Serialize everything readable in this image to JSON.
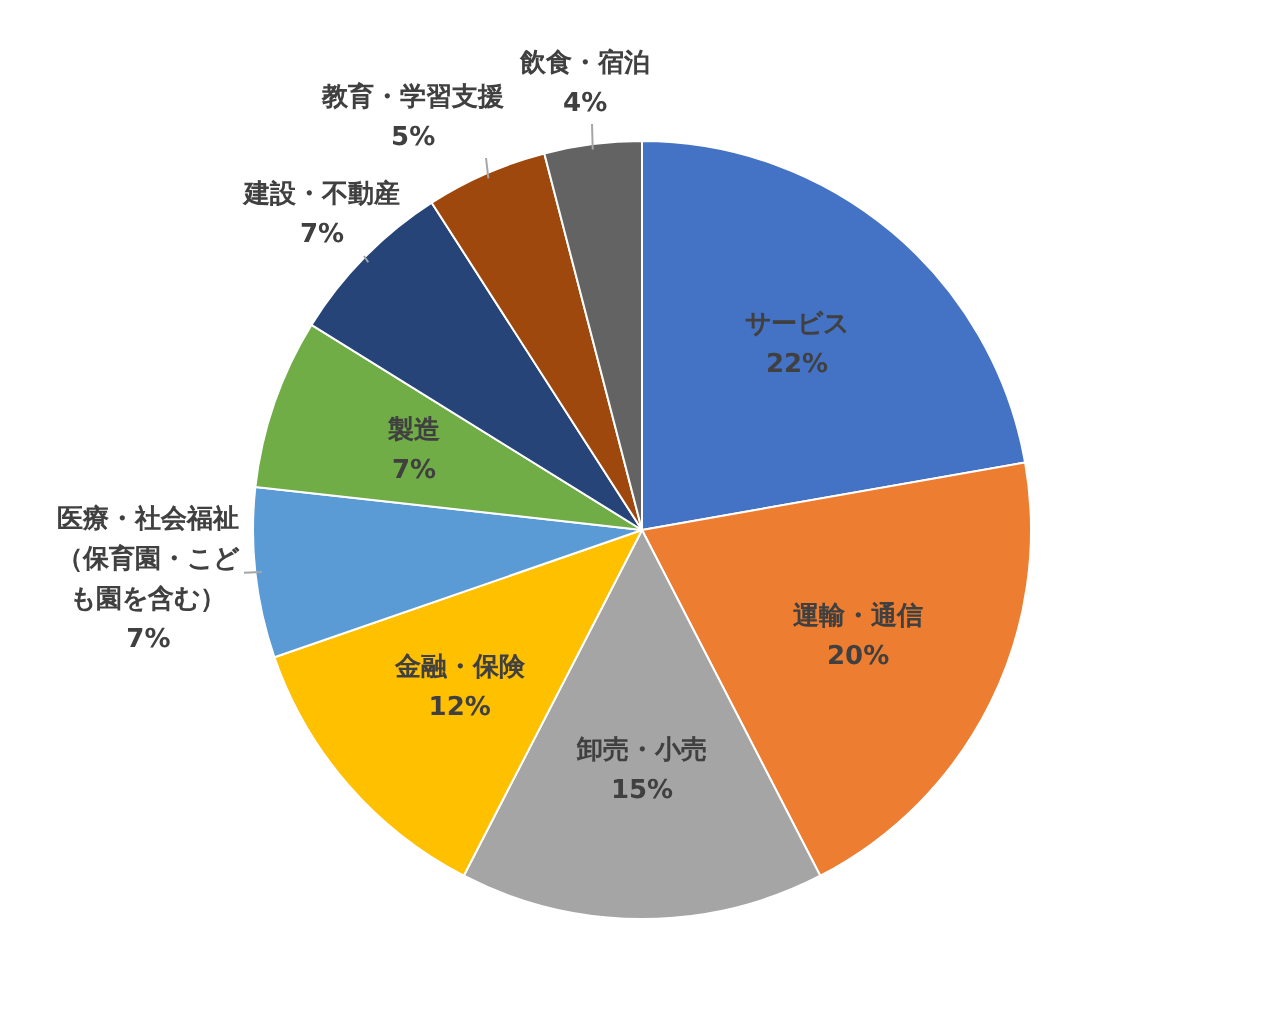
{
  "chart_data": {
    "type": "pie",
    "categories": [
      "サービス",
      "運輸・通信",
      "卸売・小売",
      "金融・保険",
      "医療・社会福祉（保育園・こども園を含む）",
      "製造",
      "建設・不動産",
      "教育・学習支援",
      "飲食・宿泊"
    ],
    "values": [
      22,
      20,
      15,
      12,
      7,
      7,
      7,
      5,
      4
    ],
    "colors": [
      "#4472c4",
      "#ed7d31",
      "#a5a5a5",
      "#ffc000",
      "#5b9bd5",
      "#70ad47",
      "#264478",
      "#9e480e",
      "#636363"
    ],
    "value_labels": [
      "22%",
      "20%",
      "15%",
      "12%",
      "7%",
      "7%",
      "7%",
      "5%",
      "4%"
    ],
    "legend": false
  }
}
